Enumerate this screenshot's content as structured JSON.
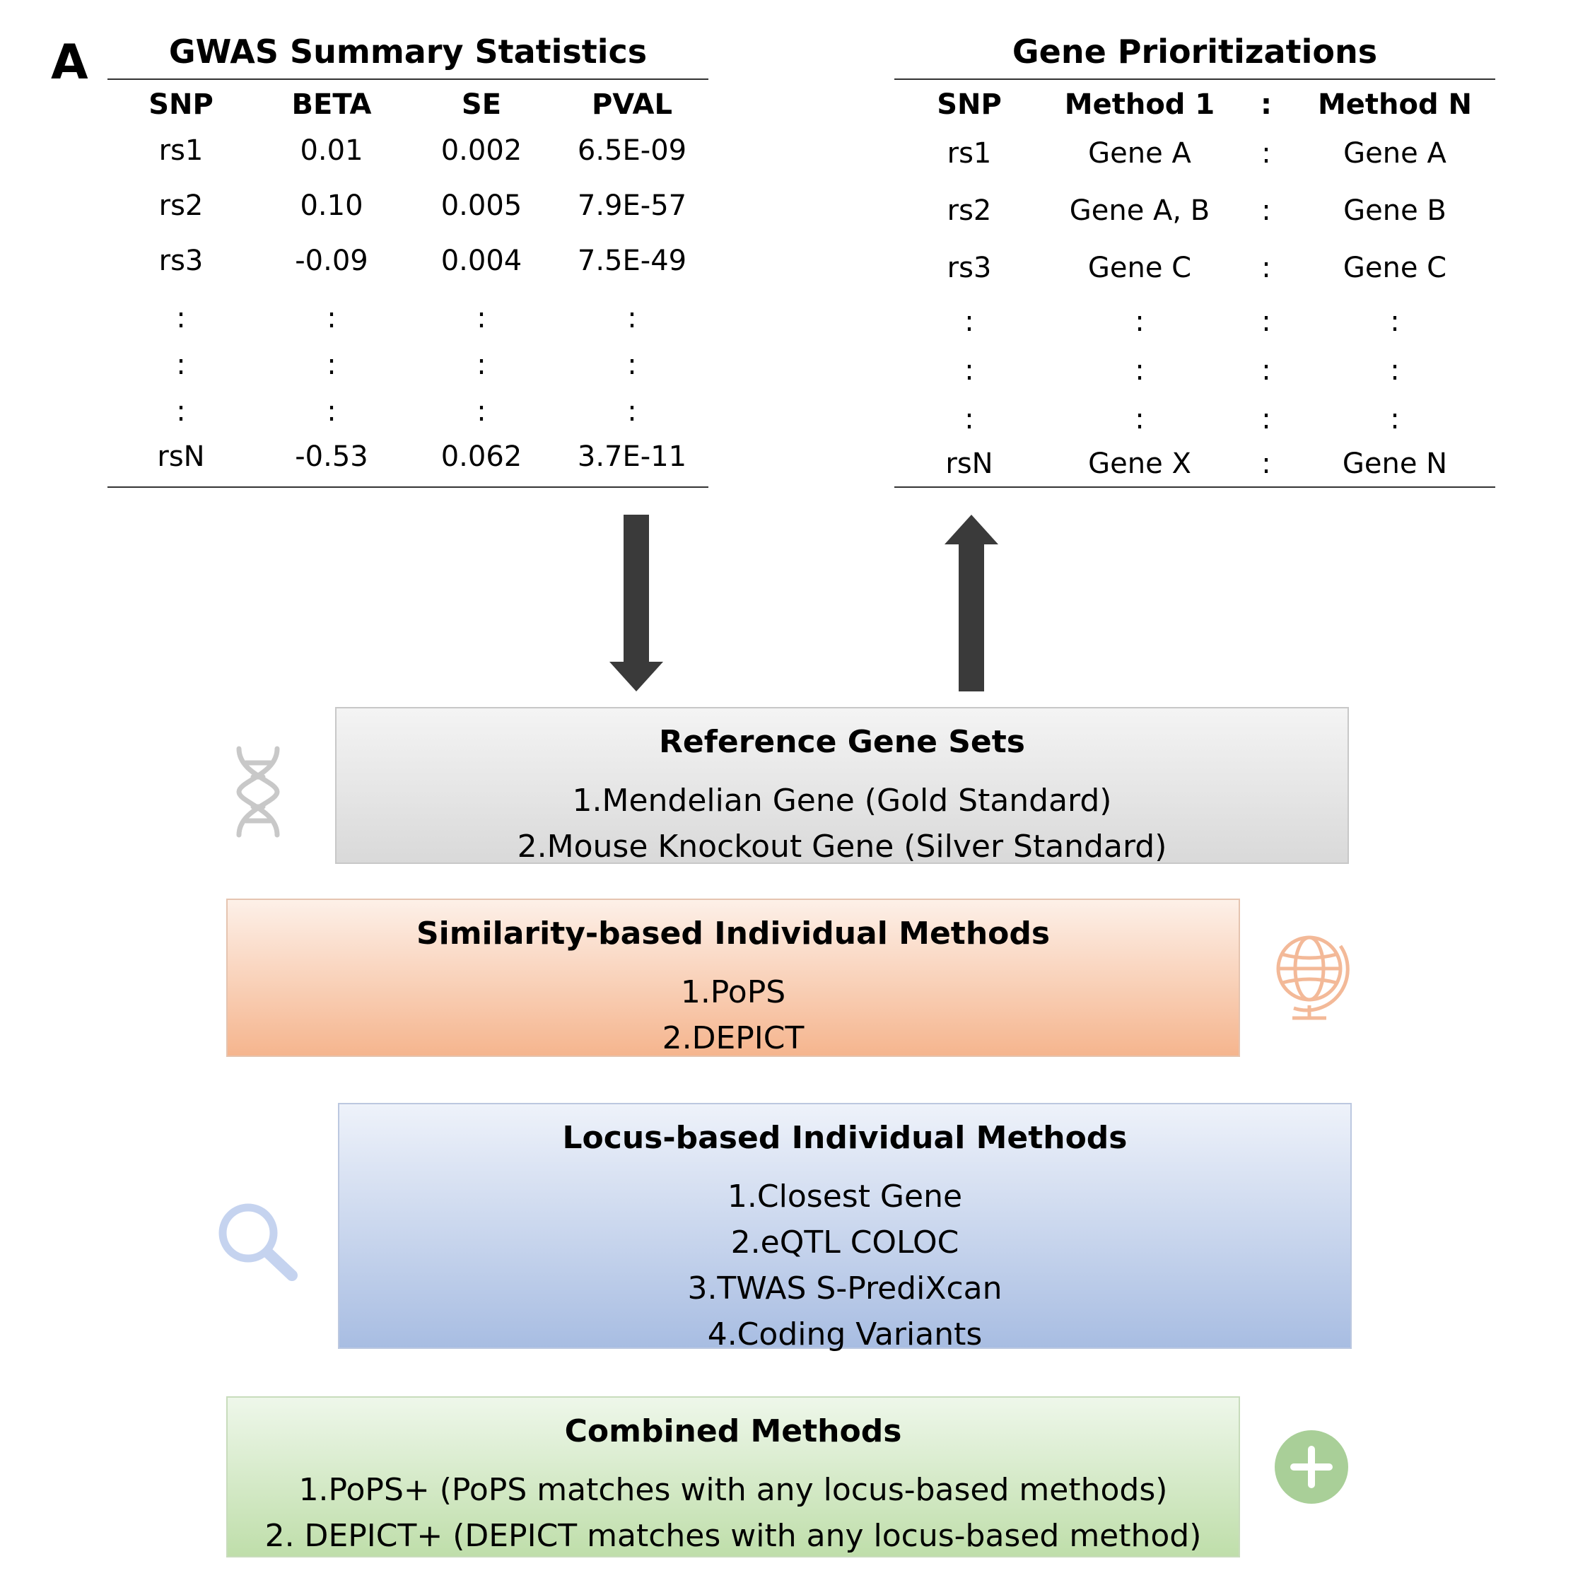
{
  "panel_label": "A",
  "gwas": {
    "title": "GWAS Summary Statistics",
    "headers": [
      "SNP",
      "BETA",
      "SE",
      "PVAL"
    ],
    "rows": [
      [
        "rs1",
        "0.01",
        "0.002",
        "6.5E-09"
      ],
      [
        "rs2",
        "0.10",
        "0.005",
        "7.9E-57"
      ],
      [
        "rs3",
        "-0.09",
        "0.004",
        "7.5E-49"
      ],
      [
        ":",
        ":",
        ":",
        ":"
      ],
      [
        ":",
        ":",
        ":",
        ":"
      ],
      [
        ":",
        ":",
        ":",
        ":"
      ],
      [
        "rsN",
        "-0.53",
        "0.062",
        "3.7E-11"
      ]
    ]
  },
  "prior": {
    "title": "Gene Prioritizations",
    "headers": [
      "SNP",
      "Method 1",
      ":",
      "Method N"
    ],
    "rows": [
      [
        "rs1",
        "Gene A",
        ":",
        "Gene A"
      ],
      [
        "rs2",
        "Gene A, B",
        ":",
        "Gene B"
      ],
      [
        "rs3",
        "Gene C",
        ":",
        "Gene C"
      ],
      [
        ":",
        ":",
        ":",
        ":"
      ],
      [
        ":",
        ":",
        ":",
        ":"
      ],
      [
        ":",
        ":",
        ":",
        ":"
      ],
      [
        "rsN",
        "Gene X",
        ":",
        "Gene N"
      ]
    ]
  },
  "reference": {
    "title": "Reference Gene Sets",
    "items": [
      "1.Mendelian Gene (Gold Standard)",
      "2.Mouse Knockout Gene (Silver Standard)"
    ]
  },
  "similarity": {
    "title": "Similarity-based Individual Methods",
    "items": [
      "1.PoPS",
      "2.DEPICT"
    ]
  },
  "locus": {
    "title": "Locus-based Individual Methods",
    "items": [
      "1.Closest Gene",
      "2.eQTL COLOC",
      "3.TWAS S-PrediXcan",
      "4.Coding Variants"
    ]
  },
  "combined": {
    "title": "Combined Methods",
    "items": [
      "1.PoPS+ (PoPS matches with any locus-based methods)",
      "2. DEPICT+ (DEPICT matches with any locus-based method)"
    ]
  },
  "icons": {
    "reference": "dna-icon",
    "similarity": "globe-icon",
    "locus": "magnifier-icon",
    "combined": "plus-icon"
  },
  "colors": {
    "arrow": "#3a3a3a",
    "dna": "#c8c8c8",
    "globe": "#f3b998",
    "magnifier": "#c5d3ef",
    "plus": "#a9cf98"
  }
}
